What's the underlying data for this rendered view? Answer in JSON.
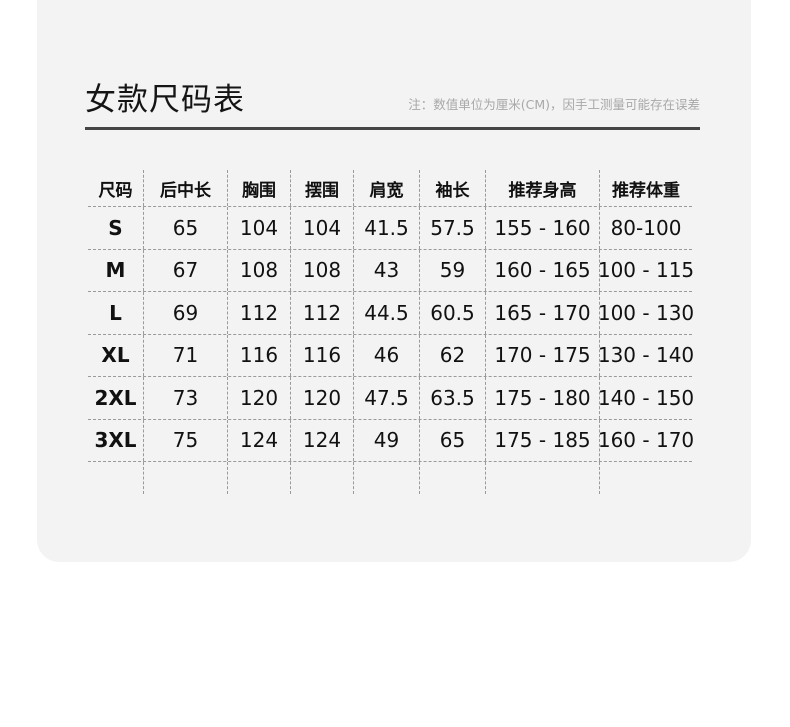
{
  "title": "女款尺码表",
  "note": "注：数值单位为厘米(CM)，因手工测量可能存在误差",
  "table": {
    "headers": [
      "尺码",
      "后中长",
      "胸围",
      "摆围",
      "肩宽",
      "袖长",
      "推荐身高",
      "推荐体重"
    ],
    "rows": [
      [
        "S",
        "65",
        "104",
        "104",
        "41.5",
        "57.5",
        "155 - 160",
        "80-100"
      ],
      [
        "M",
        "67",
        "108",
        "108",
        "43",
        "59",
        "160 - 165",
        "100 - 115"
      ],
      [
        "L",
        "69",
        "112",
        "112",
        "44.5",
        "60.5",
        "165 - 170",
        "100 - 130"
      ],
      [
        "XL",
        "71",
        "116",
        "116",
        "46",
        "62",
        "170 - 175",
        "130 - 140"
      ],
      [
        "2XL",
        "73",
        "120",
        "120",
        "47.5",
        "63.5",
        "175 - 180",
        "140 - 150"
      ],
      [
        "3XL",
        "75",
        "124",
        "124",
        "49",
        "65",
        "175 - 185",
        "160 - 170"
      ]
    ]
  }
}
